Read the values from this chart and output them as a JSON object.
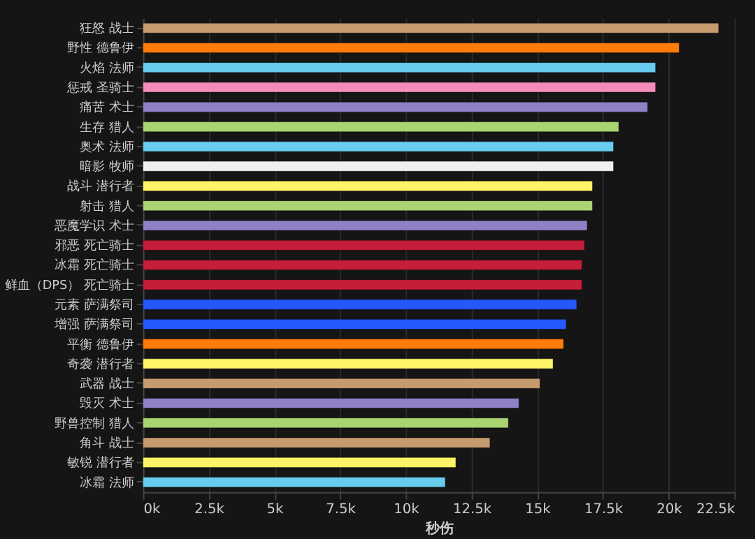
{
  "chart_data": {
    "type": "bar",
    "orientation": "horizontal",
    "xlabel": "秒伤",
    "categories": [
      "狂怒 战士",
      "野性 德鲁伊",
      "火焰 法师",
      "惩戒 圣骑士",
      "痛苦 术士",
      "生存 猎人",
      "奥术 法师",
      "暗影 牧师",
      "战斗 潜行者",
      "射击 猎人",
      "恶魔学识 术士",
      "邪恶 死亡骑士",
      "冰霜 死亡骑士",
      "鲜血（DPS） 死亡骑士",
      "元素 萨满祭司",
      "增强 萨满祭司",
      "平衡 德鲁伊",
      "奇袭 潜行者",
      "武器 战士",
      "毁灭 术士",
      "野兽控制 猎人",
      "角斗 战士",
      "敏锐 潜行者",
      "冰霜 法师"
    ],
    "values": [
      21.9,
      20.4,
      19.5,
      19.5,
      19.2,
      18.1,
      17.9,
      17.9,
      17.1,
      17.1,
      16.9,
      16.8,
      16.7,
      16.7,
      16.5,
      16.1,
      16.0,
      15.6,
      15.1,
      14.3,
      13.9,
      13.2,
      11.9,
      11.5
    ],
    "colors": [
      "#c69b6d",
      "#ff7c0a",
      "#68ccef",
      "#f48cba",
      "#8f80c8",
      "#aad372",
      "#68ccef",
      "#f0f0f0",
      "#fff468",
      "#aad372",
      "#8f80c8",
      "#c41e3a",
      "#c41e3a",
      "#c41e3a",
      "#2459ff",
      "#2459ff",
      "#ff7c0a",
      "#fff468",
      "#c69b6d",
      "#8f80c8",
      "#aad372",
      "#c69b6d",
      "#fff468",
      "#68ccef"
    ],
    "xlim": [
      0,
      22.5
    ],
    "xticks": [
      {
        "value": 0,
        "label": "0k"
      },
      {
        "value": 2.5,
        "label": "2.5k"
      },
      {
        "value": 5,
        "label": "5k"
      },
      {
        "value": 7.5,
        "label": "7.5k"
      },
      {
        "value": 10,
        "label": "10k"
      },
      {
        "value": 12.5,
        "label": "12.5k"
      },
      {
        "value": 15,
        "label": "15k"
      },
      {
        "value": 17.5,
        "label": "17.5k"
      },
      {
        "value": 20,
        "label": "20k"
      },
      {
        "value": 22.5,
        "label": "22.5k"
      }
    ],
    "grid": "x",
    "legend": false
  }
}
